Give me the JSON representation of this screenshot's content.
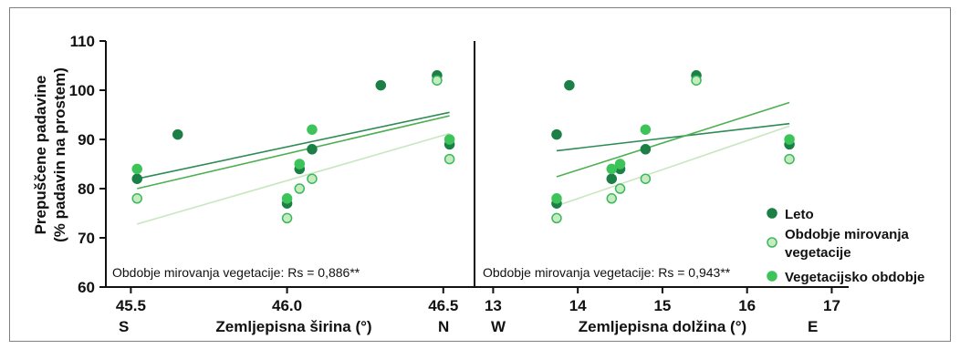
{
  "colors": {
    "leto": "#1b7f46",
    "mirovanje_fill": "#c6ebc0",
    "mirovanje_stroke": "#3cb85c",
    "vegetacijsko": "#3cc45a",
    "line_leto": "#2e8b57",
    "line_mirovanje": "#c8e6bf",
    "line_vegetacijsko": "#4caf50"
  },
  "chart_data": [
    {
      "type": "scatter",
      "ylabel_line1": "Prepuščene padavine",
      "ylabel_line2": "(% padavin na prostem)",
      "xlabel": "Zemljepisna širina (°)",
      "xdir_left": "S",
      "xdir_right": "N",
      "stat_text": "Obdobje mirovanja vegetacije: Rs = 0,886**",
      "xlim": [
        45.42,
        46.6
      ],
      "ylim": [
        60,
        110
      ],
      "xticks": [
        45.5,
        46.0,
        46.5
      ],
      "xtick_labels": [
        "45.5",
        "46.0",
        "46.5"
      ],
      "yticks": [
        60,
        70,
        80,
        90,
        100,
        110
      ],
      "ytick_labels": [
        "60",
        "70",
        "80",
        "90",
        "100",
        "110"
      ],
      "series": [
        {
          "name": "Leto",
          "points": [
            [
              45.52,
              82
            ],
            [
              45.65,
              91
            ],
            [
              46.0,
              77
            ],
            [
              46.04,
              84
            ],
            [
              46.08,
              88
            ],
            [
              46.3,
              101
            ],
            [
              46.48,
              103
            ],
            [
              46.52,
              89
            ]
          ],
          "trend": [
            [
              45.52,
              82
            ],
            [
              46.52,
              95.5
            ]
          ]
        },
        {
          "name": "Obdobje mirovanja vegetacije",
          "points": [
            [
              45.52,
              78
            ],
            [
              46.0,
              74
            ],
            [
              46.04,
              80
            ],
            [
              46.08,
              82
            ],
            [
              46.48,
              102
            ],
            [
              46.52,
              86
            ]
          ],
          "trend": [
            [
              45.52,
              72.8
            ],
            [
              46.52,
              91.2
            ]
          ]
        },
        {
          "name": "Vegetacijsko obdobje",
          "points": [
            [
              45.52,
              84
            ],
            [
              46.0,
              78
            ],
            [
              46.04,
              85
            ],
            [
              46.08,
              92
            ],
            [
              46.52,
              90
            ]
          ],
          "trend": [
            [
              45.52,
              80
            ],
            [
              46.52,
              94.8
            ]
          ]
        }
      ]
    },
    {
      "type": "scatter",
      "xlabel": "Zemljepisna dolžina (°)",
      "xdir_left": "W",
      "xdir_right": "E",
      "stat_text": "Obdobje mirovanja vegetacije: Rs = 0,943**",
      "xlim": [
        12.78,
        17.2
      ],
      "ylim": [
        60,
        110
      ],
      "xticks": [
        13,
        14,
        15,
        16,
        17
      ],
      "xtick_labels": [
        "13",
        "14",
        "15",
        "16",
        "17"
      ],
      "series": [
        {
          "name": "Leto",
          "points": [
            [
              13.75,
              91
            ],
            [
              13.9,
              101
            ],
            [
              13.75,
              77
            ],
            [
              14.4,
              82
            ],
            [
              14.5,
              84
            ],
            [
              14.8,
              88
            ],
            [
              15.4,
              103
            ],
            [
              16.5,
              89
            ]
          ],
          "trend": [
            [
              13.75,
              87.7
            ],
            [
              16.5,
              93.2
            ]
          ]
        },
        {
          "name": "Obdobje mirovanja vegetacije",
          "points": [
            [
              13.75,
              74
            ],
            [
              14.4,
              78
            ],
            [
              14.5,
              80
            ],
            [
              14.8,
              82
            ],
            [
              15.4,
              102
            ],
            [
              16.5,
              86
            ]
          ],
          "trend": [
            [
              13.75,
              76.5
            ],
            [
              16.5,
              92.7
            ]
          ]
        },
        {
          "name": "Vegetacijsko obdobje",
          "points": [
            [
              13.75,
              78
            ],
            [
              14.4,
              84
            ],
            [
              14.5,
              85
            ],
            [
              14.8,
              92
            ],
            [
              16.5,
              90
            ]
          ],
          "trend": [
            [
              13.75,
              82.4
            ],
            [
              16.5,
              97.5
            ]
          ]
        }
      ]
    }
  ],
  "legend": [
    {
      "label": "Leto",
      "key": "leto"
    },
    {
      "label": "Obdobje mirovanja",
      "label2": "vegetacije",
      "key": "mirovanje"
    },
    {
      "label": "Vegetacijsko obdobje",
      "key": "vegetacijsko"
    }
  ]
}
